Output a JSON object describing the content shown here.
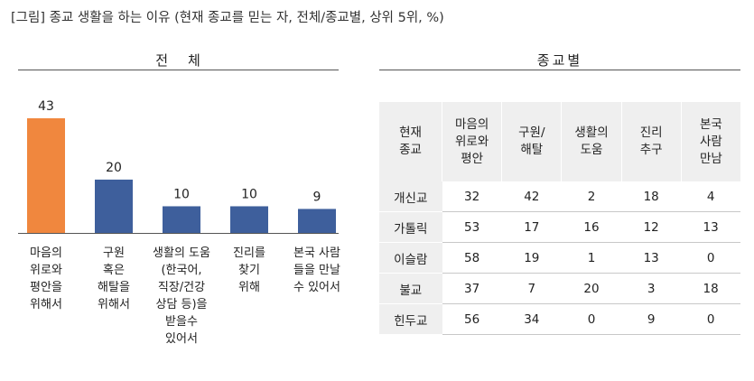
{
  "title": "[그림] 종교 생활을 하는 이유 (현재 종교를 믿는 자, 전체/종교별, 상위 5위, %)",
  "left_heading": "전체",
  "right_heading": "종교별",
  "colors": {
    "highlight_bar": "#f0873e",
    "bar": "#3e5f9c",
    "highlight_text": "#c0392b"
  },
  "chart_data": {
    "type": "bar",
    "categories": [
      "마음의\n위로와\n평안을\n위해서",
      "구원\n혹은\n해탈을\n위해서",
      "생활의 도움\n(한국어,\n직장/건강\n상담 등)을\n받을수\n있어서",
      "진리를\n찾기\n위해",
      "본국 사람\n들을 만날\n수 있어서"
    ],
    "values": [
      43,
      20,
      10,
      10,
      9
    ],
    "title": "전체",
    "ylim": [
      0,
      45
    ],
    "grid": false
  },
  "table": {
    "headers": [
      "현재\n종교",
      "마음의\n위로와\n평안",
      "구원/\n해탈",
      "생활의\n도움",
      "진리\n추구",
      "본국\n사람\n만남"
    ],
    "rows": [
      {
        "religion": "개신교",
        "values": [
          "32",
          "42",
          "2",
          "18",
          "4"
        ],
        "highlight": 1
      },
      {
        "religion": "가톨릭",
        "values": [
          "53",
          "17",
          "16",
          "12",
          "13"
        ],
        "highlight": 0
      },
      {
        "religion": "이슬람",
        "values": [
          "58",
          "19",
          "1",
          "13",
          "0"
        ],
        "highlight": 0
      },
      {
        "religion": "불교",
        "values": [
          "37",
          "7",
          "20",
          "3",
          "18"
        ],
        "highlight": 2
      },
      {
        "religion": "힌두교",
        "values": [
          "56",
          "34",
          "0",
          "9",
          "0"
        ],
        "highlight": 0
      }
    ]
  }
}
